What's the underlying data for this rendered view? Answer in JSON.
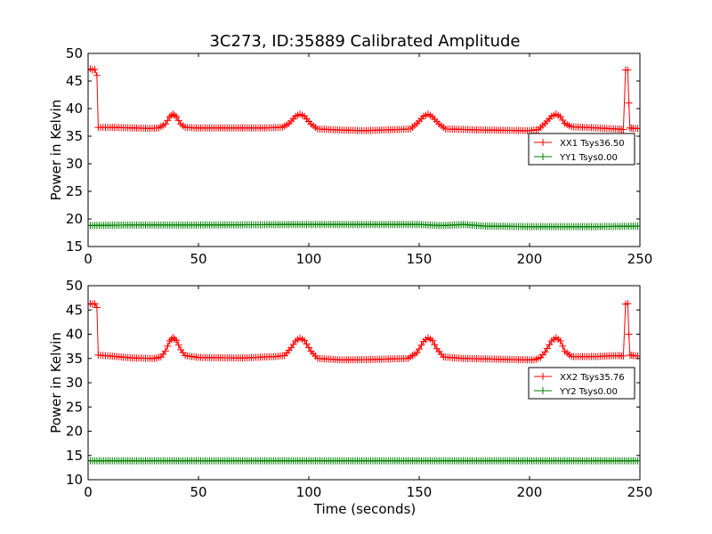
{
  "figure": {
    "title": "3C273, ID:35889 Calibrated Amplitude",
    "xlabel": "Time (seconds)"
  },
  "chart_data": [
    {
      "type": "line",
      "ylabel": "Power in Kelvin",
      "xlim": [
        0,
        250
      ],
      "ylim": [
        15,
        50
      ],
      "xticks": [
        0,
        50,
        100,
        150,
        200,
        250
      ],
      "yticks": [
        15,
        20,
        25,
        30,
        35,
        40,
        45,
        50
      ],
      "grid": false,
      "legend": "right",
      "series": [
        {
          "name": "XX1 Tsys36.50",
          "color": "#ff0000",
          "marker": "plus",
          "points": [
            [
              0,
              47.0
            ],
            [
              1,
              47.2
            ],
            [
              2,
              47.0
            ],
            [
              3,
              47.1
            ],
            [
              4,
              46.0
            ],
            [
              4.6,
              36.6
            ],
            [
              10,
              36.6
            ],
            [
              20,
              36.5
            ],
            [
              28,
              36.4
            ],
            [
              32,
              36.5
            ],
            [
              35,
              37.2
            ],
            [
              37,
              38.5
            ],
            [
              38.5,
              39.0
            ],
            [
              40,
              38.5
            ],
            [
              42,
              37.2
            ],
            [
              44,
              36.6
            ],
            [
              48,
              36.5
            ],
            [
              60,
              36.5
            ],
            [
              80,
              36.5
            ],
            [
              88,
              36.6
            ],
            [
              91,
              37.3
            ],
            [
              94,
              38.6
            ],
            [
              96,
              39.0
            ],
            [
              98,
              38.6
            ],
            [
              101,
              37.2
            ],
            [
              104,
              36.3
            ],
            [
              115,
              36.1
            ],
            [
              125,
              36.0
            ],
            [
              140,
              36.2
            ],
            [
              146,
              36.3
            ],
            [
              149,
              37.3
            ],
            [
              152,
              38.6
            ],
            [
              154,
              39.0
            ],
            [
              156,
              38.5
            ],
            [
              159,
              37.2
            ],
            [
              162,
              36.3
            ],
            [
              180,
              36.1
            ],
            [
              200,
              36.0
            ],
            [
              204,
              36.2
            ],
            [
              207,
              37.3
            ],
            [
              210,
              38.6
            ],
            [
              212,
              39.0
            ],
            [
              214,
              38.5
            ],
            [
              216,
              37.3
            ],
            [
              219,
              36.7
            ],
            [
              230,
              36.5
            ],
            [
              240,
              36.3
            ],
            [
              242.5,
              36.2
            ],
            [
              243.5,
              47.0
            ],
            [
              244.5,
              47.0
            ],
            [
              245,
              41.0
            ],
            [
              245.5,
              36.5
            ],
            [
              247,
              36.4
            ],
            [
              249,
              36.4
            ]
          ]
        },
        {
          "name": "YY1 Tsys0.00",
          "color": "#008000",
          "marker": "plus",
          "points": [
            [
              0,
              18.8
            ],
            [
              20,
              18.9
            ],
            [
              50,
              18.9
            ],
            [
              100,
              19.0
            ],
            [
              150,
              19.0
            ],
            [
              160,
              18.8
            ],
            [
              170,
              19.0
            ],
            [
              180,
              18.7
            ],
            [
              200,
              18.6
            ],
            [
              230,
              18.6
            ],
            [
              249,
              18.7
            ]
          ]
        }
      ]
    },
    {
      "type": "line",
      "ylabel": "Power in Kelvin",
      "xlabel": "Time (seconds)",
      "xlim": [
        0,
        250
      ],
      "ylim": [
        10,
        50
      ],
      "xticks": [
        0,
        50,
        100,
        150,
        200,
        250
      ],
      "yticks": [
        10,
        15,
        20,
        25,
        30,
        35,
        40,
        45,
        50
      ],
      "grid": false,
      "legend": "right",
      "series": [
        {
          "name": "XX2 Tsys35.76",
          "color": "#ff0000",
          "marker": "plus",
          "points": [
            [
              0,
              46.2
            ],
            [
              1,
              46.3
            ],
            [
              2,
              46.2
            ],
            [
              3,
              46.3
            ],
            [
              4,
              45.5
            ],
            [
              4.6,
              35.7
            ],
            [
              10,
              35.5
            ],
            [
              20,
              35.1
            ],
            [
              30,
              35.0
            ],
            [
              33,
              35.3
            ],
            [
              35,
              36.5
            ],
            [
              37,
              38.6
            ],
            [
              38.5,
              39.3
            ],
            [
              40,
              38.7
            ],
            [
              42,
              36.8
            ],
            [
              44,
              35.6
            ],
            [
              50,
              35.2
            ],
            [
              70,
              35.1
            ],
            [
              85,
              35.4
            ],
            [
              89,
              35.6
            ],
            [
              92,
              37.2
            ],
            [
              94,
              38.6
            ],
            [
              96,
              39.2
            ],
            [
              98,
              38.7
            ],
            [
              101,
              36.5
            ],
            [
              104,
              35.0
            ],
            [
              115,
              34.7
            ],
            [
              130,
              34.8
            ],
            [
              145,
              35.0
            ],
            [
              149,
              36.2
            ],
            [
              152,
              38.5
            ],
            [
              154,
              39.3
            ],
            [
              156,
              38.7
            ],
            [
              158,
              37.0
            ],
            [
              161,
              35.3
            ],
            [
              170,
              35.0
            ],
            [
              190,
              34.8
            ],
            [
              202,
              34.7
            ],
            [
              205,
              35.2
            ],
            [
              207,
              36.3
            ],
            [
              210,
              38.6
            ],
            [
              212,
              39.3
            ],
            [
              214,
              38.6
            ],
            [
              216,
              36.5
            ],
            [
              219,
              35.4
            ],
            [
              230,
              35.4
            ],
            [
              240,
              35.6
            ],
            [
              242.5,
              35.5
            ],
            [
              243.5,
              46.2
            ],
            [
              244.5,
              46.3
            ],
            [
              245,
              40.0
            ],
            [
              245.5,
              35.7
            ],
            [
              247,
              35.6
            ],
            [
              249,
              35.5
            ]
          ]
        },
        {
          "name": "YY2 Tsys0.00",
          "color": "#008000",
          "marker": "plus",
          "points": [
            [
              0,
              13.9
            ],
            [
              50,
              13.9
            ],
            [
              100,
              13.9
            ],
            [
              150,
              13.9
            ],
            [
              200,
              13.9
            ],
            [
              249,
              13.9
            ]
          ]
        }
      ]
    }
  ]
}
